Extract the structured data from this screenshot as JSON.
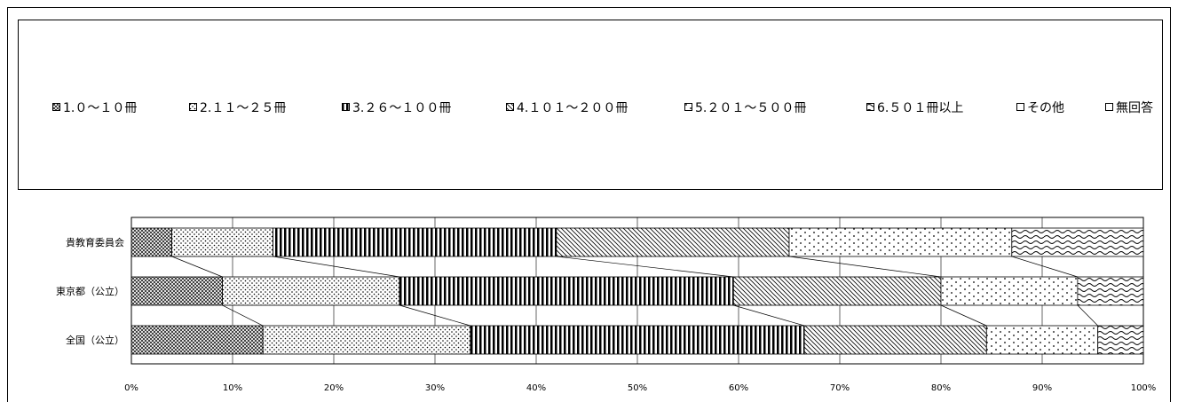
{
  "chart_data": {
    "type": "bar",
    "orientation": "horizontal",
    "stacked": true,
    "percent": true,
    "categories": [
      "貴教育委員会",
      "東京都（公立）",
      "全国（公立）"
    ],
    "series": [
      {
        "name": "1.０～１０冊",
        "pattern": "cross-hatch-dense",
        "values": [
          4,
          9,
          13
        ]
      },
      {
        "name": "2.１１～２５冊",
        "pattern": "dots-dense",
        "values": [
          10,
          17.5,
          20.5
        ]
      },
      {
        "name": "3.２６～１００冊",
        "pattern": "vertical-stripes",
        "values": [
          28,
          33,
          33
        ]
      },
      {
        "name": "4.１０１～２００冊",
        "pattern": "diagonal",
        "values": [
          23,
          20.5,
          18
        ]
      },
      {
        "name": "5.２０１～５００冊",
        "pattern": "dots-sparse",
        "values": [
          22,
          13.5,
          11
        ]
      },
      {
        "name": "6.５０１冊以上",
        "pattern": "waves",
        "values": [
          13,
          6.5,
          4.5
        ]
      },
      {
        "name": "その他",
        "pattern": "none",
        "values": [
          0,
          0,
          0
        ]
      },
      {
        "name": "無回答",
        "pattern": "none",
        "values": [
          0,
          0,
          0
        ]
      }
    ],
    "xlim": [
      0,
      100
    ],
    "xticks": [
      "0%",
      "10%",
      "20%",
      "30%",
      "40%",
      "50%",
      "60%",
      "70%",
      "80%",
      "90%",
      "100%"
    ],
    "grid": true,
    "legend_position": "top",
    "colors": {
      "stroke": "#000000",
      "fill": "#ffffff"
    }
  }
}
